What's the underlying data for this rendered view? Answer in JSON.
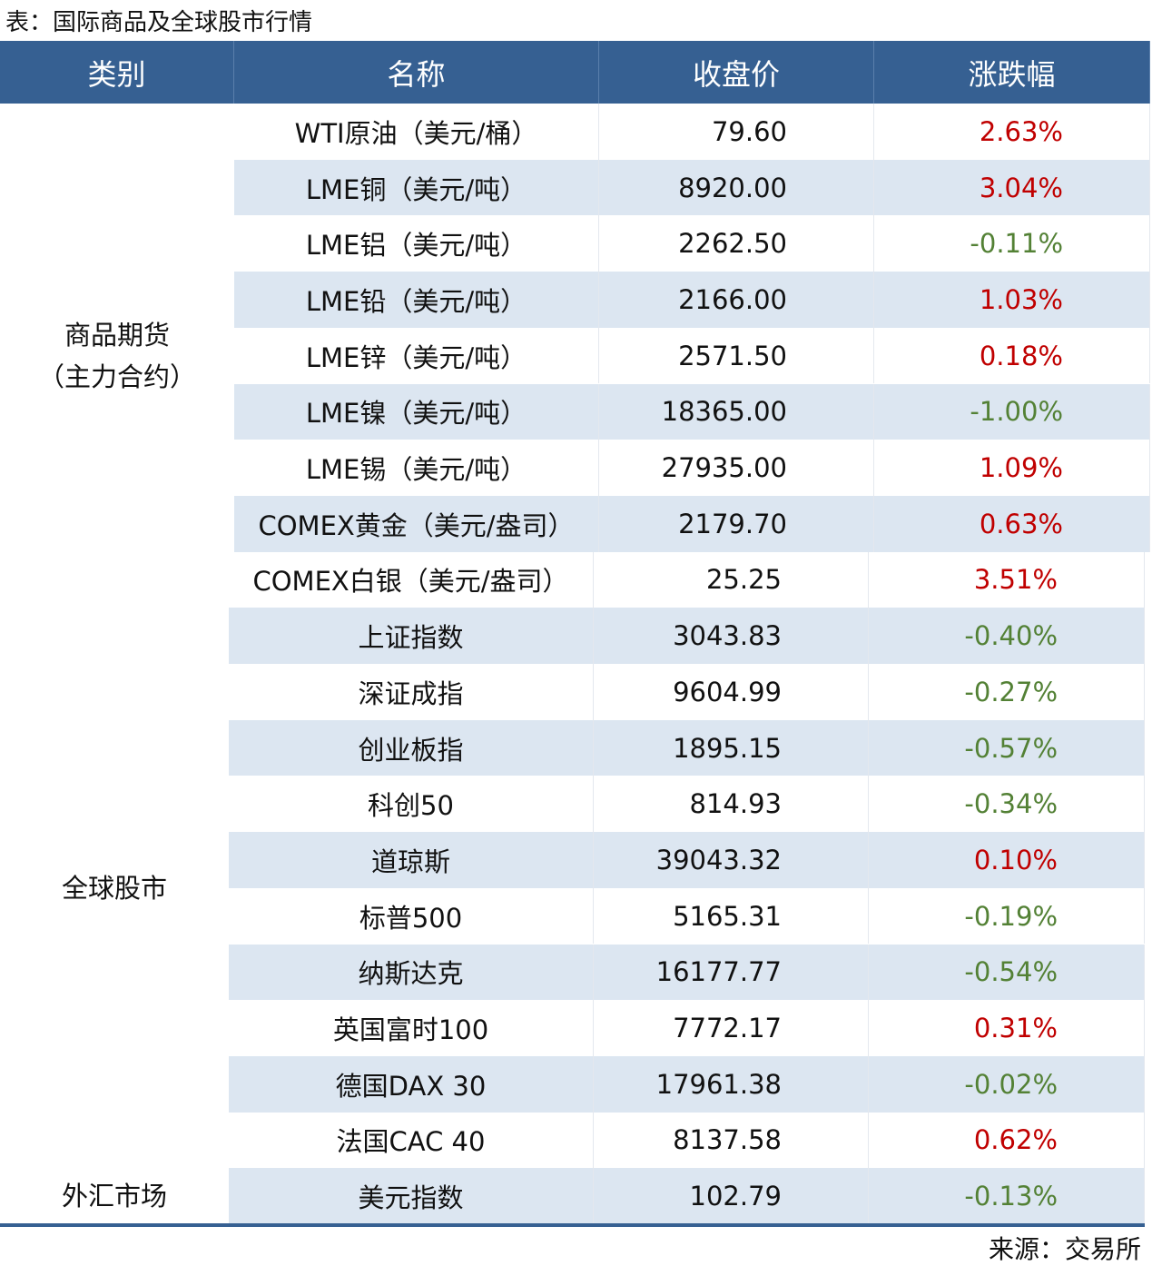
{
  "caption": "表：国际商品及全球股市行情",
  "headers": [
    "类别",
    "名称",
    "收盘价",
    "涨跌幅"
  ],
  "categories": [
    {
      "label": "商品期货\n（主力合约）",
      "rows": [
        0,
        8
      ]
    },
    {
      "label": "全球股市",
      "rows": [
        9,
        18
      ]
    },
    {
      "label": "外汇市场",
      "rows": [
        19,
        19
      ]
    }
  ],
  "rows": [
    {
      "name": "WTI原油（美元/桶）",
      "close": "79.60",
      "change": "2.63%",
      "dir": "up"
    },
    {
      "name": "LME铜（美元/吨）",
      "close": "8920.00",
      "change": "3.04%",
      "dir": "up"
    },
    {
      "name": "LME铝（美元/吨）",
      "close": "2262.50",
      "change": "-0.11%",
      "dir": "down"
    },
    {
      "name": "LME铅（美元/吨）",
      "close": "2166.00",
      "change": "1.03%",
      "dir": "up"
    },
    {
      "name": "LME锌（美元/吨）",
      "close": "2571.50",
      "change": "0.18%",
      "dir": "up"
    },
    {
      "name": "LME镍（美元/吨）",
      "close": "18365.00",
      "change": "-1.00%",
      "dir": "down"
    },
    {
      "name": "LME锡（美元/吨）",
      "close": "27935.00",
      "change": "1.09%",
      "dir": "up"
    },
    {
      "name": "COMEX黄金（美元/盎司）",
      "close": "2179.70",
      "change": "0.63%",
      "dir": "up"
    },
    {
      "name": "COMEX白银（美元/盎司）",
      "close": "25.25",
      "change": "3.51%",
      "dir": "up"
    },
    {
      "name": "上证指数",
      "close": "3043.83",
      "change": "-0.40%",
      "dir": "down"
    },
    {
      "name": "深证成指",
      "close": "9604.99",
      "change": "-0.27%",
      "dir": "down"
    },
    {
      "name": "创业板指",
      "close": "1895.15",
      "change": "-0.57%",
      "dir": "down"
    },
    {
      "name": "科创50",
      "close": "814.93",
      "change": "-0.34%",
      "dir": "down"
    },
    {
      "name": "道琼斯",
      "close": "39043.32",
      "change": "0.10%",
      "dir": "up"
    },
    {
      "name": "标普500",
      "close": "5165.31",
      "change": "-0.19%",
      "dir": "down"
    },
    {
      "name": "纳斯达克",
      "close": "16177.77",
      "change": "-0.54%",
      "dir": "down"
    },
    {
      "name": "英国富时100",
      "close": "7772.17",
      "change": "0.31%",
      "dir": "up"
    },
    {
      "name": "德国DAX 30",
      "close": "17961.38",
      "change": "-0.02%",
      "dir": "down"
    },
    {
      "name": "法国CAC 40",
      "close": "8137.58",
      "change": "0.62%",
      "dir": "up"
    },
    {
      "name": "美元指数",
      "close": "102.79",
      "change": "-0.13%",
      "dir": "down"
    }
  ],
  "colors": {
    "header": "#366092",
    "stripe": "#dce6f1",
    "up": "#c00000",
    "down": "#538135"
  },
  "source": "来源：交易所"
}
